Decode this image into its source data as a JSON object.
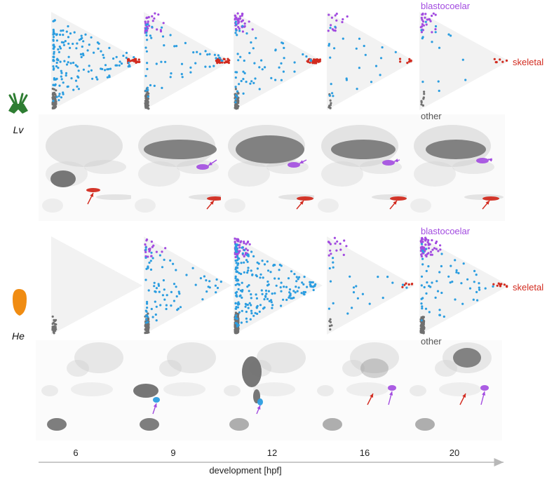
{
  "figure": {
    "x_axis_label": "development [hpf]",
    "timepoints": [
      "6",
      "9",
      "12",
      "16",
      "20"
    ],
    "cell_type_labels": {
      "blastocoelar": "blastocoelar",
      "skeletal": "skeletal",
      "other": "other"
    },
    "colors": {
      "blastocoelar": "#a24be0",
      "progenitor": "#2b9de0",
      "skeletal": "#d22b1f",
      "other": "#707070",
      "umap_bg": "#cfcfcf",
      "arrow_red": "#d22b1f",
      "arrow_purple": "#a24be0",
      "triangle_fill": "#f2f2f2"
    },
    "rows": [
      {
        "id": "Lv",
        "species_label": "Lv",
        "icon": "pluteus-larva-icon",
        "icon_color": "#2e7d32"
      },
      {
        "id": "He",
        "species_label": "He",
        "icon": "direct-developer-larva-icon",
        "icon_color": "#f08c12"
      }
    ]
  },
  "chart_data": {
    "type": "scatter",
    "description_of_axes": "ternary simplex (blastocoelar / skeletal / other) per developmental timepoint",
    "x": [
      "6",
      "9",
      "12",
      "16",
      "20"
    ],
    "xlabel": "development [hpf]",
    "series": [
      {
        "name": "blastocoelar",
        "color": "#a24be0"
      },
      {
        "name": "skeletal",
        "color": "#d22b1f"
      },
      {
        "name": "other",
        "color": "#707070"
      }
    ],
    "panels": {
      "Lv": [
        {
          "hpf": "6",
          "counts": {
            "blastocoelar": 0,
            "mixed": 160,
            "skeletal": 22,
            "other": 70
          }
        },
        {
          "hpf": "9",
          "counts": {
            "blastocoelar": 30,
            "mixed": 55,
            "skeletal": 30,
            "other": 60
          }
        },
        {
          "hpf": "12",
          "counts": {
            "blastocoelar": 35,
            "mixed": 60,
            "skeletal": 35,
            "other": 50
          }
        },
        {
          "hpf": "16",
          "counts": {
            "blastocoelar": 15,
            "mixed": 25,
            "skeletal": 8,
            "other": 10
          }
        },
        {
          "hpf": "20",
          "counts": {
            "blastocoelar": 25,
            "mixed": 15,
            "skeletal": 6,
            "other": 8
          }
        }
      ],
      "He": [
        {
          "hpf": "6",
          "counts": {
            "blastocoelar": 0,
            "mixed": 0,
            "skeletal": 0,
            "other": 25
          }
        },
        {
          "hpf": "9",
          "counts": {
            "blastocoelar": 20,
            "mixed": 80,
            "skeletal": 0,
            "other": 90
          }
        },
        {
          "hpf": "12",
          "counts": {
            "blastocoelar": 50,
            "mixed": 220,
            "skeletal": 0,
            "other": 200
          }
        },
        {
          "hpf": "16",
          "counts": {
            "blastocoelar": 15,
            "mixed": 22,
            "skeletal": 6,
            "other": 6
          }
        },
        {
          "hpf": "20",
          "counts": {
            "blastocoelar": 60,
            "mixed": 60,
            "skeletal": 10,
            "other": 80
          }
        }
      ]
    }
  }
}
